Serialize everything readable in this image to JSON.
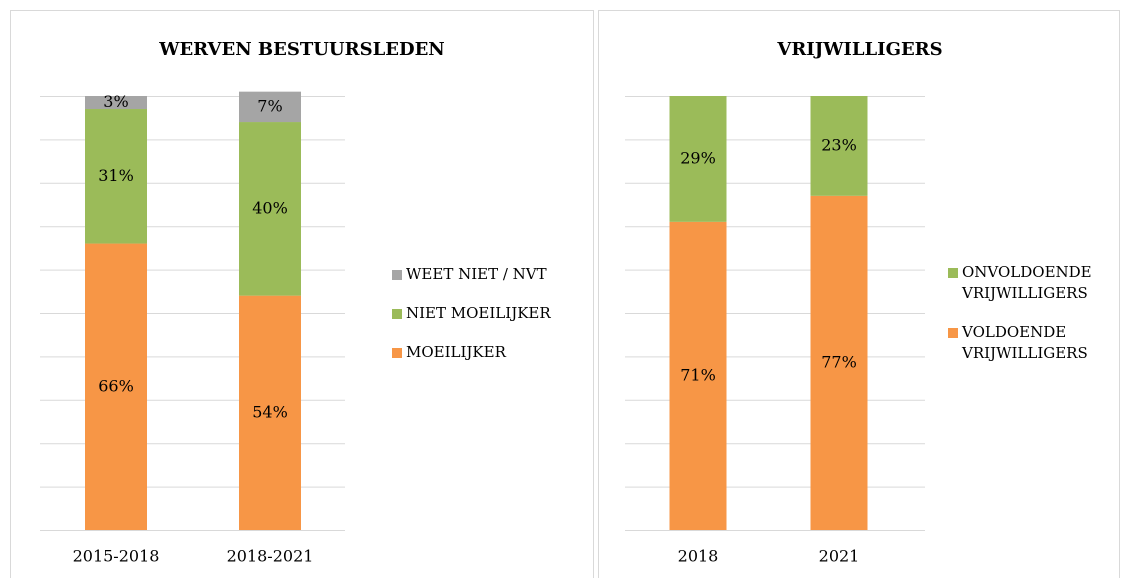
{
  "chart_data": [
    {
      "type": "stacked_bar",
      "title": "WERVEN BESTUURSLEDEN",
      "categories": [
        "2015-2018",
        "2018-2021"
      ],
      "series": [
        {
          "name": "MOEILIJKER",
          "color": "#f79646",
          "values": [
            66,
            54
          ],
          "value_labels": [
            "66%",
            "54%"
          ]
        },
        {
          "name": "NIET MOEILIJKER",
          "color": "#9bbb59",
          "values": [
            31,
            40
          ],
          "value_labels": [
            "31%",
            "40%"
          ]
        },
        {
          "name": "WEET NIET / NVT",
          "color": "#a5a5a5",
          "values": [
            3,
            7
          ],
          "value_labels": [
            "3%",
            "7%"
          ]
        }
      ],
      "ylim": [
        0,
        100
      ],
      "yticks": [
        0,
        10,
        20,
        30,
        40,
        50,
        60,
        70,
        80,
        90,
        100
      ],
      "grid": true,
      "legend": "right"
    },
    {
      "type": "stacked_bar",
      "title": "VRIJWILLIGERS",
      "categories": [
        "2018",
        "2021"
      ],
      "series": [
        {
          "name": "VOLDOENDE VRIJWILLIGERS",
          "color": "#f79646",
          "values": [
            71,
            77
          ],
          "value_labels": [
            "71%",
            "77%"
          ]
        },
        {
          "name": "ONVOLDOENDE VRIJWILLIGERS",
          "color": "#9bbb59",
          "values": [
            29,
            23
          ],
          "value_labels": [
            "29%",
            "23%"
          ]
        }
      ],
      "ylim": [
        0,
        100
      ],
      "yticks": [
        0,
        10,
        20,
        30,
        40,
        50,
        60,
        70,
        80,
        90,
        100
      ],
      "grid": true,
      "legend": "right"
    }
  ]
}
